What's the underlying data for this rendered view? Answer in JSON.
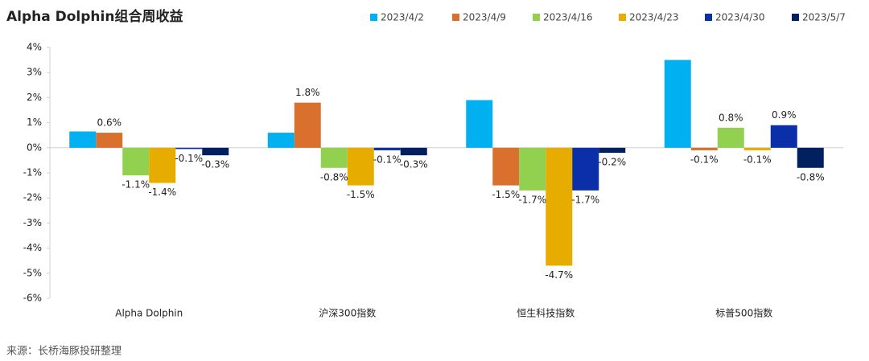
{
  "chart_data": {
    "type": "bar",
    "title": "Alpha Dolphin组合周收益",
    "source": "来源：长桥海豚投研整理",
    "categories": [
      "Alpha Dolphin",
      "沪深300指数",
      "恒生科技指数",
      "标普500指数"
    ],
    "series": [
      {
        "name": "2023/4/2",
        "color": "#00b0f0",
        "values": [
          0.65,
          0.6,
          1.9,
          3.5
        ],
        "value_labels": [
          null,
          null,
          null,
          null
        ]
      },
      {
        "name": "2023/4/9",
        "color": "#d9702e",
        "values": [
          0.6,
          1.8,
          -1.5,
          -0.1
        ],
        "value_labels": [
          "0.6%",
          "1.8%",
          "-1.5%",
          "-0.1%"
        ]
      },
      {
        "name": "2023/4/16",
        "color": "#92d050",
        "values": [
          -1.1,
          -0.8,
          -1.7,
          0.8
        ],
        "value_labels": [
          "-1.1%",
          "-0.8%",
          "-1.7%",
          "0.8%"
        ]
      },
      {
        "name": "2023/4/23",
        "color": "#e6ac00",
        "values": [
          -1.4,
          -1.5,
          -4.7,
          -0.1
        ],
        "value_labels": [
          "-1.4%",
          "-1.5%",
          "-4.7%",
          "-0.1%"
        ]
      },
      {
        "name": "2023/4/30",
        "color": "#0a2fa8",
        "values": [
          -0.05,
          -0.1,
          -1.7,
          0.9
        ],
        "value_labels": [
          "-0.1%",
          "-0.1%",
          "-1.7%",
          "0.9%"
        ]
      },
      {
        "name": "2023/5/7",
        "color": "#002060",
        "values": [
          -0.3,
          -0.3,
          -0.2,
          -0.8
        ],
        "value_labels": [
          "-0.3%",
          "-0.3%",
          "-0.2%",
          "-0.8%"
        ]
      }
    ],
    "ylim": [
      -6,
      4
    ],
    "yticks": [
      {
        "value": -6,
        "label": "-6%"
      },
      {
        "value": -5,
        "label": "-5%"
      },
      {
        "value": -4,
        "label": "-4%"
      },
      {
        "value": -3,
        "label": "-3%"
      },
      {
        "value": -2,
        "label": "-2%"
      },
      {
        "value": -1,
        "label": "-1%"
      },
      {
        "value": 0,
        "label": "0%"
      },
      {
        "value": 1,
        "label": "1%"
      },
      {
        "value": 2,
        "label": "2%"
      },
      {
        "value": 3,
        "label": "3%"
      },
      {
        "value": 4,
        "label": "4%"
      }
    ],
    "legend": "top-right"
  }
}
